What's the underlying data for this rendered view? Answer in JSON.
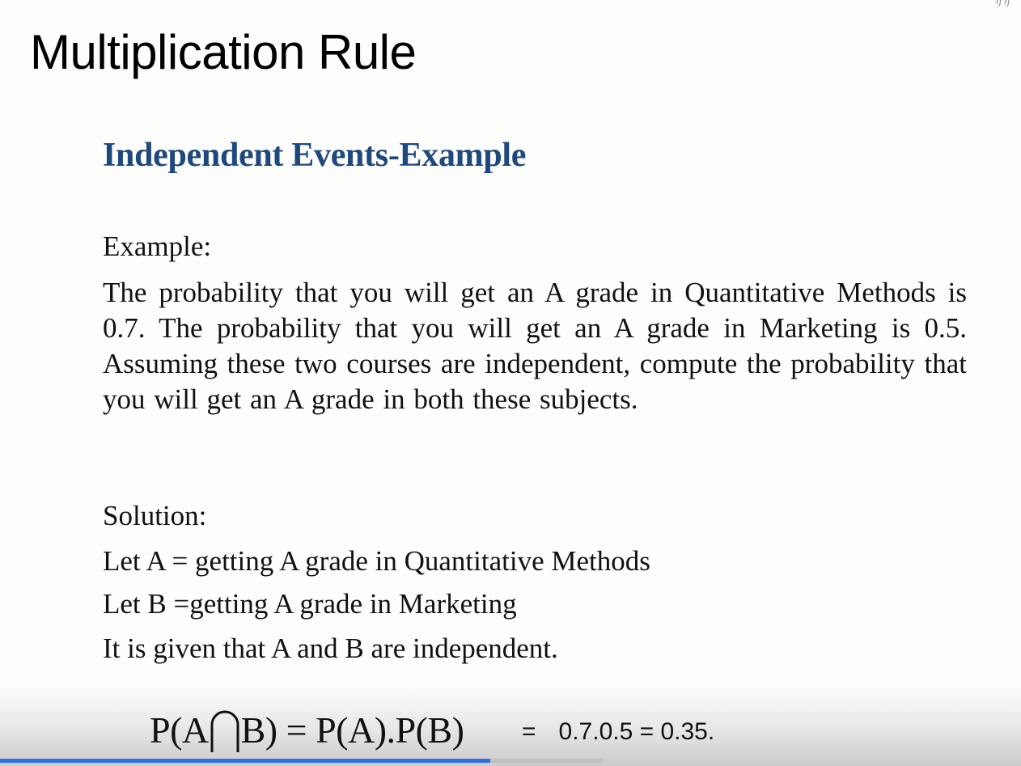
{
  "slide": {
    "title": "Multiplication Rule",
    "corner_mark": "ŋ ŋ",
    "subtitle": "Independent Events-Example"
  },
  "example": {
    "label": "Example:",
    "text": "The probability that you will get an A grade in Quantitative Methods is 0.7. The probability that you will get an A grade in Marketing is 0.5. Assuming these two courses are independent, compute the probability that you will get an A grade in both these subjects."
  },
  "solution": {
    "label": "Solution:",
    "lines": [
      "Let A = getting A grade in Quantitative Methods",
      "Let B =getting A grade in Marketing",
      "It is given that A and B are independent."
    ]
  },
  "formula": {
    "left_open": "P(A",
    "left_close": "B) = P(A).P(B)",
    "equals": "=",
    "result": "0.7.0.5 = 0.35.",
    "symbol_icon": "intersection-icon"
  },
  "player": {
    "progress_fraction": 0.48,
    "buffered_fraction": 0.59,
    "progress_color": "#2f6fe0"
  },
  "colors": {
    "subtitle": "#1f497d",
    "text": "#111111",
    "background": "#fdfdfb"
  }
}
